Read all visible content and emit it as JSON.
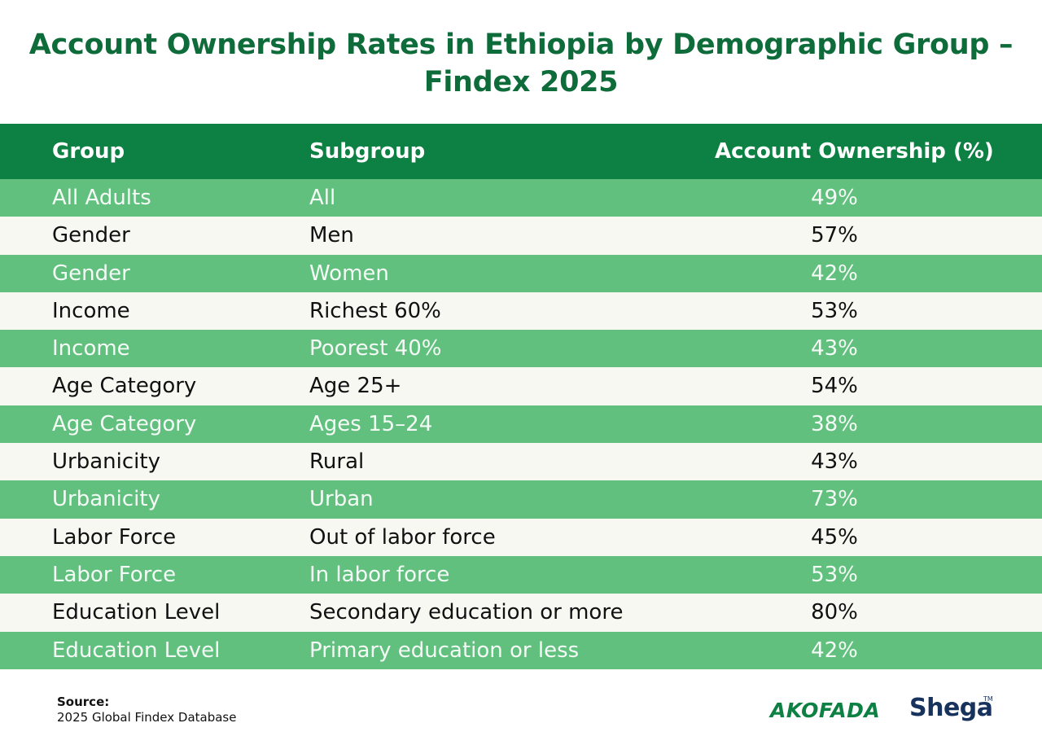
{
  "chart_data": {
    "type": "table",
    "title": "Account Ownership Rates in Ethiopia by Demographic Group – Findex 2025",
    "columns": [
      "Group",
      "Subgroup",
      "Account Ownership (%)"
    ],
    "rows": [
      {
        "group": "All Adults",
        "subgroup": "All",
        "value": "49%"
      },
      {
        "group": "Gender",
        "subgroup": "Men",
        "value": "57%"
      },
      {
        "group": "Gender",
        "subgroup": "Women",
        "value": "42%"
      },
      {
        "group": "Income",
        "subgroup": "Richest 60%",
        "value": "53%"
      },
      {
        "group": "Income",
        "subgroup": "Poorest 40%",
        "value": "43%"
      },
      {
        "group": "Age Category",
        "subgroup": "Age 25+",
        "value": "54%"
      },
      {
        "group": "Age Category",
        "subgroup": "Ages 15–24",
        "value": "38%"
      },
      {
        "group": "Urbanicity",
        "subgroup": "Rural",
        "value": "43%"
      },
      {
        "group": "Urbanicity",
        "subgroup": "Urban",
        "value": "73%"
      },
      {
        "group": "Labor Force",
        "subgroup": "Out of labor force",
        "value": "45%"
      },
      {
        "group": "Labor Force",
        "subgroup": "In labor force",
        "value": "53%"
      },
      {
        "group": "Education Level",
        "subgroup": "Secondary education or more",
        "value": "80%"
      },
      {
        "group": "Education Level",
        "subgroup": "Primary education or less",
        "value": "42%"
      }
    ]
  },
  "source": {
    "label": "Source:",
    "text": "2025 Global Findex Database"
  },
  "logos": {
    "akofada": "AKOFADA",
    "shega": "Shega",
    "trademark": "TM"
  },
  "colors": {
    "title": "#0e6b3a",
    "header_bg": "#0d8143",
    "row_green": "#61c07e",
    "row_light": "#f8f8f3"
  }
}
